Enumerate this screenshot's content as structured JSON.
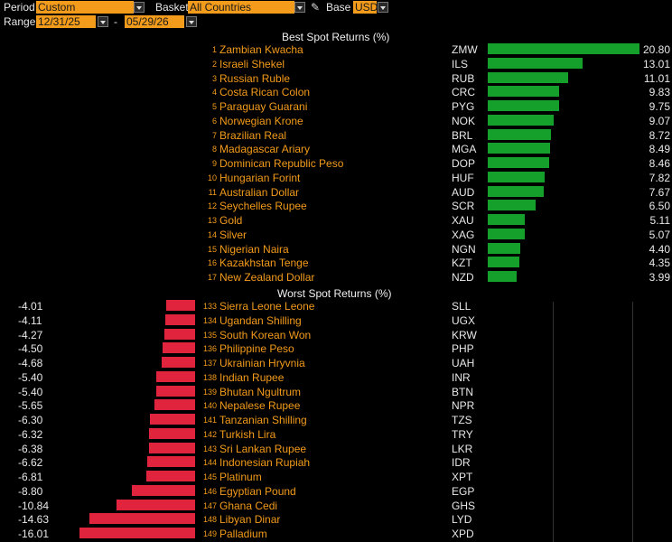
{
  "toolbar": {
    "period_label": "Period",
    "period_value": "Custom",
    "basket_label": "Basket",
    "basket_value": "All Countries",
    "base_label": "Base",
    "base_value": "USD",
    "range_label": "Range",
    "range_start": "12/31/25",
    "range_sep": "-",
    "range_end": "05/29/26"
  },
  "best": {
    "title": "Best Spot Returns (%)",
    "max_value": 20.8,
    "items": [
      {
        "rank": "1",
        "name": "Zambian Kwacha",
        "code": "ZMW",
        "value": "20.80"
      },
      {
        "rank": "2",
        "name": "Israeli Shekel",
        "code": "ILS",
        "value": "13.01"
      },
      {
        "rank": "3",
        "name": "Russian Ruble",
        "code": "RUB",
        "value": "11.01"
      },
      {
        "rank": "4",
        "name": "Costa Rican Colon",
        "code": "CRC",
        "value": "9.83"
      },
      {
        "rank": "5",
        "name": "Paraguay Guarani",
        "code": "PYG",
        "value": "9.75"
      },
      {
        "rank": "6",
        "name": "Norwegian Krone",
        "code": "NOK",
        "value": "9.07"
      },
      {
        "rank": "7",
        "name": "Brazilian Real",
        "code": "BRL",
        "value": "8.72"
      },
      {
        "rank": "8",
        "name": "Madagascar Ariary",
        "code": "MGA",
        "value": "8.49"
      },
      {
        "rank": "9",
        "name": "Dominican Republic Peso",
        "code": "DOP",
        "value": "8.46"
      },
      {
        "rank": "10",
        "name": "Hungarian Forint",
        "code": "HUF",
        "value": "7.82"
      },
      {
        "rank": "11",
        "name": "Australian Dollar",
        "code": "AUD",
        "value": "7.67"
      },
      {
        "rank": "12",
        "name": "Seychelles Rupee",
        "code": "SCR",
        "value": "6.50"
      },
      {
        "rank": "13",
        "name": "Gold",
        "code": "XAU",
        "value": "5.11"
      },
      {
        "rank": "14",
        "name": "Silver",
        "code": "XAG",
        "value": "5.07"
      },
      {
        "rank": "15",
        "name": "Nigerian Naira",
        "code": "NGN",
        "value": "4.40"
      },
      {
        "rank": "16",
        "name": "Kazakhstan Tenge",
        "code": "KZT",
        "value": "4.35"
      },
      {
        "rank": "17",
        "name": "New Zealand Dollar",
        "code": "NZD",
        "value": "3.99"
      }
    ]
  },
  "worst": {
    "title": "Worst Spot Returns (%)",
    "max_value": 16.01,
    "items": [
      {
        "rank": "133",
        "name": "Sierra Leone Leone",
        "code": "SLL",
        "value": "-4.01"
      },
      {
        "rank": "134",
        "name": "Ugandan Shilling",
        "code": "UGX",
        "value": "-4.11"
      },
      {
        "rank": "135",
        "name": "South Korean Won",
        "code": "KRW",
        "value": "-4.27"
      },
      {
        "rank": "136",
        "name": "Philippine Peso",
        "code": "PHP",
        "value": "-4.50"
      },
      {
        "rank": "137",
        "name": "Ukrainian Hryvnia",
        "code": "UAH",
        "value": "-4.68"
      },
      {
        "rank": "138",
        "name": "Indian Rupee",
        "code": "INR",
        "value": "-5.40"
      },
      {
        "rank": "139",
        "name": "Bhutan Ngultrum",
        "code": "BTN",
        "value": "-5.40"
      },
      {
        "rank": "140",
        "name": "Nepalese Rupee",
        "code": "NPR",
        "value": "-5.65"
      },
      {
        "rank": "141",
        "name": "Tanzanian Shilling",
        "code": "TZS",
        "value": "-6.30"
      },
      {
        "rank": "142",
        "name": "Turkish Lira",
        "code": "TRY",
        "value": "-6.32"
      },
      {
        "rank": "143",
        "name": "Sri Lankan Rupee",
        "code": "LKR",
        "value": "-6.38"
      },
      {
        "rank": "144",
        "name": "Indonesian Rupiah",
        "code": "IDR",
        "value": "-6.62"
      },
      {
        "rank": "145",
        "name": "Platinum",
        "code": "XPT",
        "value": "-6.81"
      },
      {
        "rank": "146",
        "name": "Egyptian Pound",
        "code": "EGP",
        "value": "-8.80"
      },
      {
        "rank": "147",
        "name": "Ghana Cedi",
        "code": "GHS",
        "value": "-10.84"
      },
      {
        "rank": "148",
        "name": "Libyan Dinar",
        "code": "LYD",
        "value": "-14.63"
      },
      {
        "rank": "149",
        "name": "Palladium",
        "code": "XPD",
        "value": "-16.01"
      }
    ]
  },
  "colors": {
    "accent": "#f39b1a",
    "positive": "#14a02a",
    "negative": "#e0243d",
    "background": "#000000"
  },
  "icons": {
    "dropdown": "chevron-down-icon",
    "edit": "pencil-icon"
  }
}
